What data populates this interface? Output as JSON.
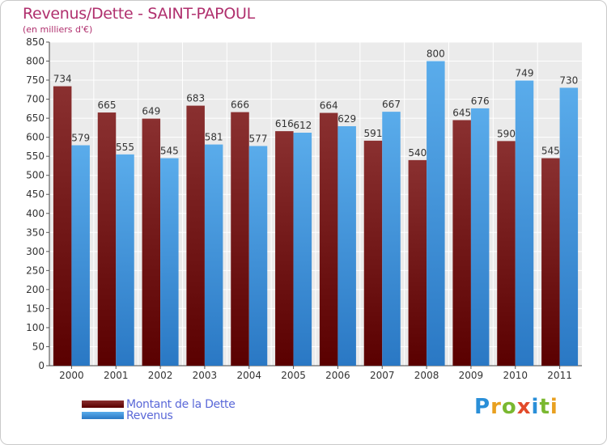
{
  "chart_data": {
    "type": "bar",
    "title": "Revenus/Dette - SAINT-PAPOUL",
    "subtitle": "(en milliers d'€)",
    "categories": [
      "2000",
      "2001",
      "2002",
      "2003",
      "2004",
      "2005",
      "2006",
      "2007",
      "2008",
      "2009",
      "2010",
      "2011"
    ],
    "series": [
      {
        "name": "Montant de la Dette",
        "values": [
          734,
          665,
          649,
          683,
          666,
          616,
          664,
          591,
          540,
          645,
          590,
          545
        ],
        "color": "#7a1c1c"
      },
      {
        "name": "Revenus",
        "values": [
          579,
          555,
          545,
          581,
          577,
          612,
          629,
          667,
          800,
          676,
          749,
          730
        ],
        "color": "#4a9fe0"
      }
    ],
    "ylim": [
      0,
      850
    ],
    "yticks": [
      0,
      50,
      100,
      150,
      200,
      250,
      300,
      350,
      400,
      450,
      500,
      550,
      600,
      650,
      700,
      750,
      800,
      850
    ],
    "grid": true,
    "legend_position": "bottom-left"
  },
  "logo": {
    "text": "Proxiti"
  }
}
